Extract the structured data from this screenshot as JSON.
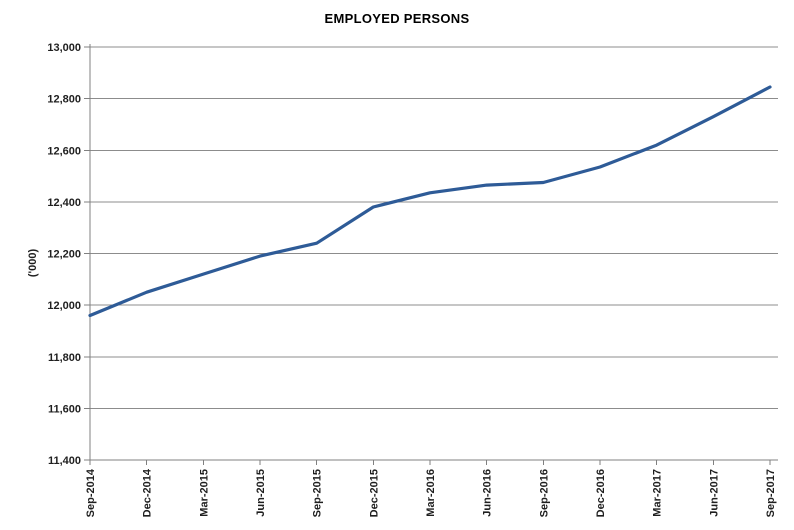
{
  "chart_data": {
    "type": "line",
    "title": "EMPLOYED PERSONS",
    "ylabel": "('000)",
    "xlabel": "",
    "legend": "none",
    "grid": "horizontal",
    "categories": [
      "Sep-2014",
      "Dec-2014",
      "Mar-2015",
      "Jun-2015",
      "Sep-2015",
      "Dec-2015",
      "Mar-2016",
      "Jun-2016",
      "Sep-2016",
      "Dec-2016",
      "Mar-2017",
      "Jun-2017",
      "Sep-2017"
    ],
    "values": [
      11960,
      12050,
      12120,
      12190,
      12240,
      12380,
      12435,
      12465,
      12475,
      12535,
      12620,
      12730,
      12845
    ],
    "ylim": [
      11400,
      13000
    ],
    "ytick_step": 200,
    "yticks": [
      {
        "label": "11,400",
        "value": 11400
      },
      {
        "label": "11,600",
        "value": 11600
      },
      {
        "label": "11,800",
        "value": 11800
      },
      {
        "label": "12,000",
        "value": 12000
      },
      {
        "label": "12,200",
        "value": 12200
      },
      {
        "label": "12,400",
        "value": 12400
      },
      {
        "label": "12,600",
        "value": 12600
      },
      {
        "label": "12,800",
        "value": 12800
      },
      {
        "label": "13,000",
        "value": 13000
      }
    ],
    "colors": {
      "line": "#2E5B97",
      "gridline": "#8C8C8C",
      "axis": "#808080",
      "tick_text": "#1F1F1F",
      "title_text": "#000000",
      "background": "#FFFFFF"
    }
  }
}
